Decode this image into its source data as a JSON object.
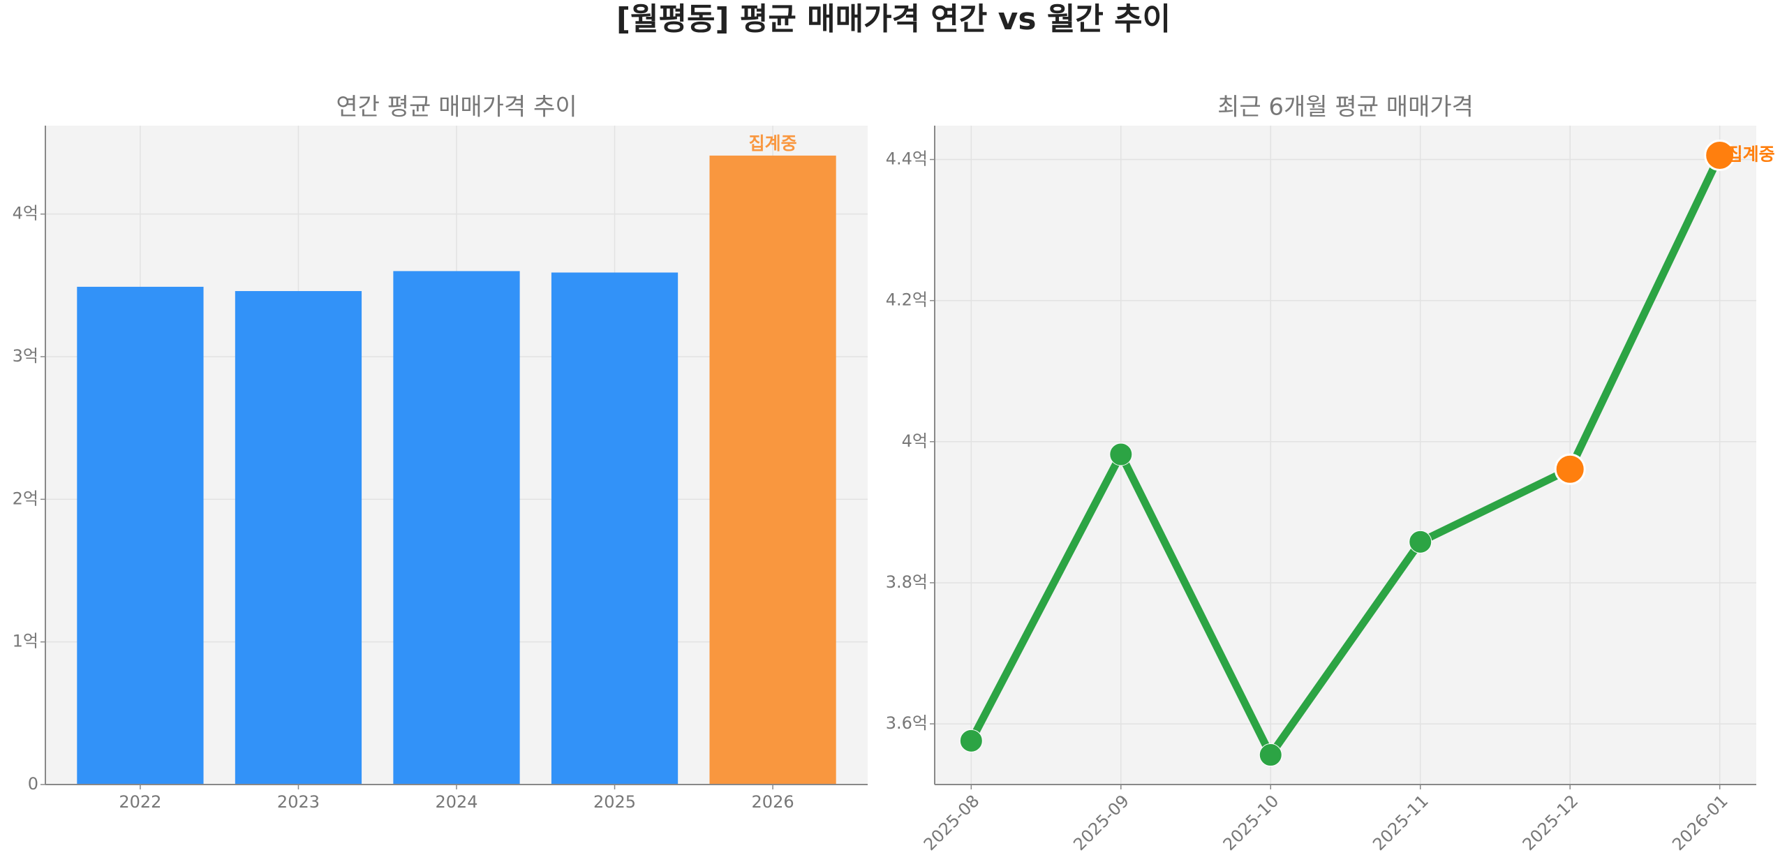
{
  "title": "[월평동] 평균 매매가격 연간 vs 월간 추이",
  "chart_data": [
    {
      "type": "bar",
      "title": "연간 평균 매매가격 추이",
      "categories": [
        "2022",
        "2023",
        "2024",
        "2025",
        "2026"
      ],
      "values": [
        3.49,
        3.46,
        3.6,
        3.59,
        4.41
      ],
      "colors": [
        "#3292f8",
        "#3292f8",
        "#3292f8",
        "#3292f8",
        "#f9973f"
      ],
      "ylim": [
        0,
        4.62
      ],
      "yticks": [
        0,
        {
          "value": 1,
          "label": "1억"
        },
        {
          "value": 2,
          "label": "2억"
        },
        {
          "value": 3,
          "label": "3억"
        },
        {
          "value": 4,
          "label": "4억"
        }
      ],
      "grid": true,
      "annotation": {
        "text": "집계중",
        "category": "2026",
        "color": "#f9973f"
      }
    },
    {
      "type": "line",
      "title": "최근 6개월 평균 매매가격",
      "categories": [
        "2025-08",
        "2025-09",
        "2025-10",
        "2025-11",
        "2025-12",
        "2026-01"
      ],
      "series": [
        {
          "name": "평균 매매가격",
          "color": "#2ca444",
          "values": [
            3.576,
            3.982,
            3.556,
            3.858,
            3.961,
            4.406
          ],
          "marker_colors": [
            "#2ca444",
            "#2ca444",
            "#2ca444",
            "#2ca444",
            "#ff7f0e",
            "#ff7f0e"
          ]
        }
      ],
      "ylim": [
        3.514,
        4.448
      ],
      "yticks": [
        {
          "value": 3.6,
          "label": "3.6억"
        },
        {
          "value": 3.8,
          "label": "3.8억"
        },
        {
          "value": 4,
          "label": "4억"
        },
        {
          "value": 4.2,
          "label": "4.2억"
        },
        {
          "value": 4.4,
          "label": "4.4억"
        }
      ],
      "grid": true,
      "annotation": {
        "text": "집계중",
        "category": "2026-01",
        "color": "#ff7f0e"
      }
    }
  ]
}
